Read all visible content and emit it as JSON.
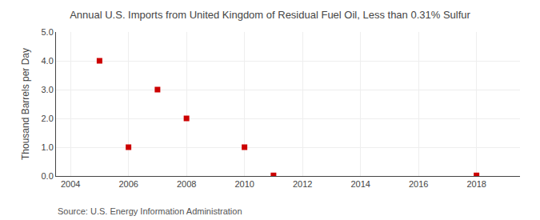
{
  "chart_data": {
    "type": "scatter",
    "title": "Annual U.S. Imports from United Kingdom of Residual Fuel Oil, Less than 0.31% Sulfur",
    "ylabel": "Thousand Barrels per Day",
    "annotations": [
      "Source: U.S. Energy Information Administration"
    ],
    "x": [
      2005,
      2006,
      2007,
      2008,
      2010,
      2011,
      2018
    ],
    "values": [
      4.0,
      1.0,
      3.0,
      2.0,
      1.0,
      0.02,
      0.02
    ],
    "color": "#cc0000",
    "marker": "square",
    "xlim": [
      2003.5,
      2019.5
    ],
    "ylim": [
      0.0,
      5.0
    ],
    "xticks": [
      2004,
      2006,
      2008,
      2010,
      2012,
      2014,
      2016,
      2018
    ],
    "yticks": [
      {
        "value": 0,
        "label": "0.0"
      },
      {
        "value": 1,
        "label": "1.0"
      },
      {
        "value": 2,
        "label": "2.0"
      },
      {
        "value": 3,
        "label": "3.0"
      },
      {
        "value": 4,
        "label": "4.0"
      },
      {
        "value": 5,
        "label": "5.0"
      }
    ],
    "grid": true
  }
}
